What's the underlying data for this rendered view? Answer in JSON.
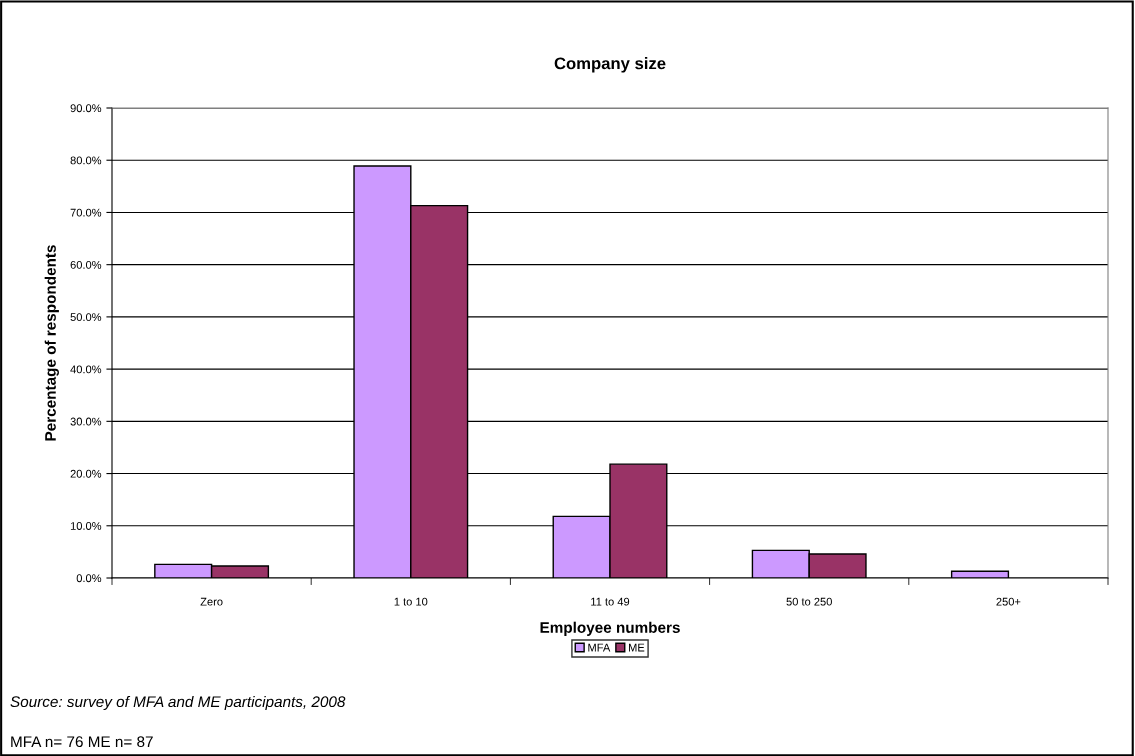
{
  "chart_data": {
    "type": "bar",
    "title": "Company size",
    "xlabel": "Employee numbers",
    "ylabel": "Percentage of respondents",
    "categories": [
      "Zero",
      "1 to 10",
      "11 to 49",
      "50 to 250",
      "250+"
    ],
    "series": [
      {
        "name": "MFA",
        "color": "#cc99ff",
        "values": [
          2.6,
          78.9,
          11.8,
          5.3,
          1.3
        ]
      },
      {
        "name": "ME",
        "color": "#993366",
        "values": [
          2.3,
          71.3,
          21.8,
          4.6,
          null
        ]
      }
    ],
    "ylim": [
      0,
      90
    ],
    "yticks": [
      {
        "value": 0,
        "label": "0.0%"
      },
      {
        "value": 10,
        "label": "10.0%"
      },
      {
        "value": 20,
        "label": "20.0%"
      },
      {
        "value": 30,
        "label": "30.0%"
      },
      {
        "value": 40,
        "label": "40.0%"
      },
      {
        "value": 50,
        "label": "50.0%"
      },
      {
        "value": 60,
        "label": "60.0%"
      },
      {
        "value": 70,
        "label": "70.0%"
      },
      {
        "value": 80,
        "label": "80.0%"
      },
      {
        "value": 90,
        "label": "90.0%"
      }
    ],
    "grid": "y",
    "legend": "bottom",
    "annotations": [
      "Source: survey of MFA and ME participants, 2008",
      "MFA n= 76 ME n= 87"
    ]
  }
}
